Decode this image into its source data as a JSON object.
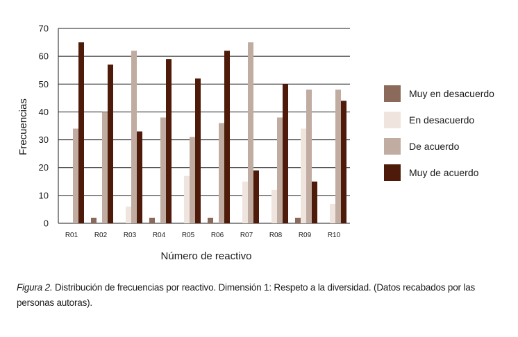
{
  "chart_data": {
    "type": "bar",
    "xlabel": "Número de reactivo",
    "ylabel": "Frecuencias",
    "ylim": [
      0,
      70
    ],
    "yticks": [
      0,
      10,
      20,
      30,
      40,
      50,
      60,
      70
    ],
    "categories": [
      "R01",
      "R02",
      "R03",
      "R04",
      "R05",
      "R06",
      "R07",
      "R08",
      "R09",
      "R10"
    ],
    "series": [
      {
        "name": "Muy en desacuerdo",
        "color": "#8c6a5b",
        "values": [
          0,
          2,
          0,
          2,
          0,
          2,
          0,
          0,
          2,
          0
        ]
      },
      {
        "name": "En desacuerdo",
        "color": "#efe4de",
        "values": [
          0,
          0,
          6,
          0,
          17,
          0,
          15,
          12,
          34,
          7
        ]
      },
      {
        "name": "De acuerdo",
        "color": "#c0aca1",
        "values": [
          34,
          40,
          62,
          38,
          31,
          36,
          65,
          38,
          48,
          48
        ]
      },
      {
        "name": "Muy de acuerdo",
        "color": "#4e1a09",
        "values": [
          65,
          57,
          33,
          59,
          52,
          62,
          19,
          50,
          15,
          44
        ]
      }
    ],
    "grid": true,
    "legend": "right"
  },
  "caption": {
    "figure_label": "Figura 2.",
    "text": " Distribución de frecuencias por reactivo. Dimensión 1: Respeto a la diversidad. (Datos recabados por las personas autoras)."
  }
}
